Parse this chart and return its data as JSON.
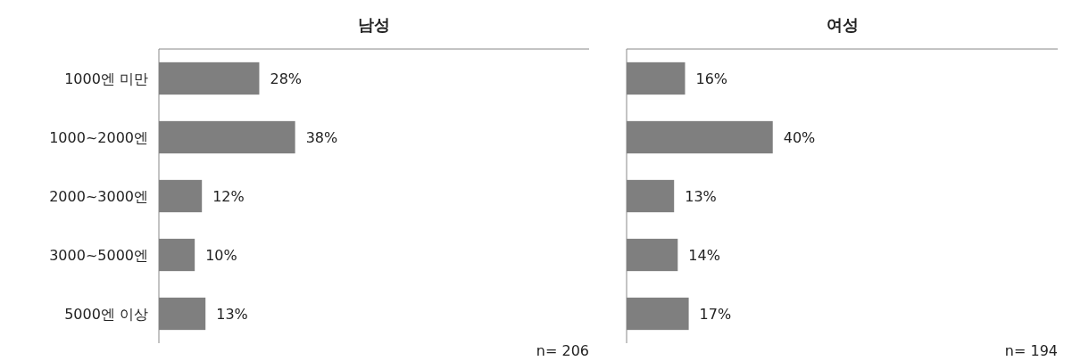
{
  "chart_data": [
    {
      "type": "bar",
      "orientation": "horizontal",
      "title": "남성",
      "categories": [
        "1000엔 미만",
        "1000~2000엔",
        "2000~3000엔",
        "3000~5000엔",
        "5000엔 이상"
      ],
      "values": [
        28,
        38,
        12,
        10,
        13
      ],
      "value_labels": [
        "28%",
        "38%",
        "12%",
        "10%",
        "13%"
      ],
      "color": "#7f7f7f",
      "xlim": [
        0,
        120
      ],
      "tick_labels": "y",
      "annotations": [
        "n= 206"
      ]
    },
    {
      "type": "bar",
      "orientation": "horizontal",
      "title": "여성",
      "categories": [
        null,
        null,
        null,
        null,
        null
      ],
      "values": [
        16,
        40,
        13,
        14,
        17
      ],
      "value_labels": [
        "16%",
        "40%",
        "13%",
        "14%",
        "17%"
      ],
      "color": "#7f7f7f",
      "xlim": [
        0,
        118
      ],
      "tick_labels": false,
      "annotations": [
        "n= 194"
      ]
    }
  ]
}
